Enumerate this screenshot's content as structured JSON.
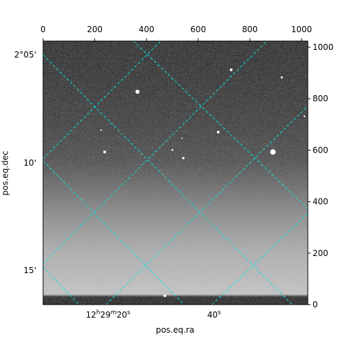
{
  "chart_data": {
    "type": "image",
    "xlabel": "pos.eq.ra",
    "ylabel": "pos.eq.dec",
    "xlim": [
      0,
      1024
    ],
    "ylim": [
      0,
      1024
    ],
    "xticks": [
      0,
      200,
      400,
      600,
      800,
      1000
    ],
    "yticks": [
      0,
      200,
      400,
      600,
      800,
      1000
    ],
    "ra_tick_labels": [
      "12h29m20s",
      "40s"
    ],
    "dec_tick_labels": [
      "2°05'",
      "10'",
      "15'"
    ],
    "grid_color": "#00e5e5"
  }
}
